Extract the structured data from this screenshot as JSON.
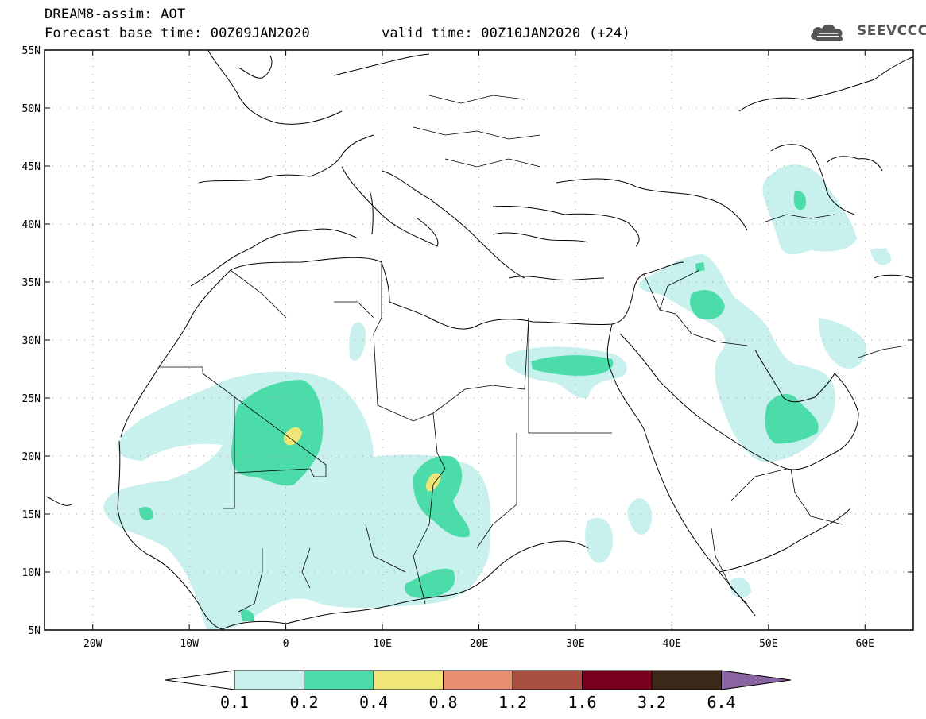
{
  "header": {
    "title": "DREAM8-assim: AOT",
    "base_time": "Forecast base time: 00Z09JAN2020",
    "valid_time": "valid time: 00Z10JAN2020 (+24)"
  },
  "logo": {
    "text": "SEEVCCC",
    "icon": "cloud-logo-icon"
  },
  "map": {
    "lon_ticks": [
      "20W",
      "10W",
      "0",
      "10E",
      "20E",
      "30E",
      "40E",
      "50E",
      "60E"
    ],
    "lat_ticks": [
      "55N",
      "50N",
      "45N",
      "40N",
      "35N",
      "30N",
      "25N",
      "20N",
      "15N",
      "10N",
      "5N"
    ],
    "lon_range": [
      -25,
      65
    ],
    "lat_range": [
      5,
      55
    ]
  },
  "colorbar": {
    "levels": [
      "0.1",
      "0.2",
      "0.4",
      "0.8",
      "1.2",
      "1.6",
      "3.2",
      "6.4"
    ],
    "colors": [
      "#c8f0ec",
      "#4cdcaa",
      "#f0e678",
      "#e89070",
      "#aa5040",
      "#7a0020",
      "#3a2818",
      "#8a64a0"
    ],
    "under_color": "#ffffff"
  }
}
